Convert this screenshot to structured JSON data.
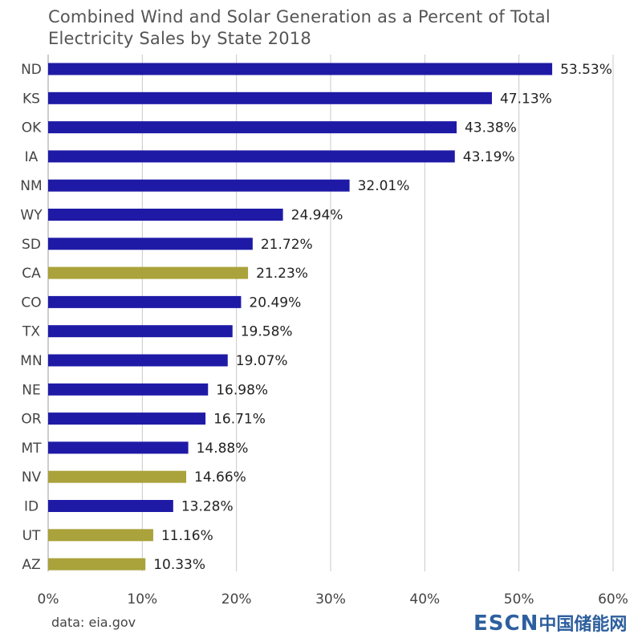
{
  "title_lines": [
    "Combined Wind and Solar Generation as a Percent of Total",
    "Electricity Sales by State 2018"
  ],
  "source": "data: eia.gov",
  "watermark": {
    "latin": "ESCN",
    "cn": "中国储能网"
  },
  "colors": {
    "wind": "#1f1aa6",
    "solar": "#aaa23b",
    "grid": "#c8c8c8",
    "axis": "#999999",
    "text": "#222222"
  },
  "chart_data": {
    "type": "bar",
    "orientation": "horizontal",
    "title": "Combined Wind and Solar Generation as a Percent of Total Electricity Sales by State 2018",
    "xlabel": "",
    "ylabel": "",
    "xlim": [
      0,
      60
    ],
    "xticks": [
      0,
      10,
      20,
      30,
      40,
      50,
      60
    ],
    "xtick_labels": [
      "0%",
      "10%",
      "20%",
      "30%",
      "40%",
      "50%",
      "60%"
    ],
    "grid": true,
    "categories": [
      "ND",
      "KS",
      "OK",
      "IA",
      "NM",
      "WY",
      "SD",
      "CA",
      "CO",
      "TX",
      "MN",
      "NE",
      "OR",
      "MT",
      "NV",
      "ID",
      "UT",
      "AZ"
    ],
    "values": [
      53.53,
      47.13,
      43.38,
      43.19,
      32.01,
      24.94,
      21.72,
      21.23,
      20.49,
      19.58,
      19.07,
      16.98,
      16.71,
      14.88,
      14.66,
      13.28,
      11.16,
      10.33
    ],
    "labels": [
      "53.53%",
      "47.13%",
      "43.38%",
      "43.19%",
      "32.01%",
      "24.94%",
      "21.72%",
      "21.23%",
      "20.49%",
      "19.58%",
      "19.07%",
      "16.98%",
      "16.71%",
      "14.88%",
      "14.66%",
      "13.28%",
      "11.16%",
      "10.33%"
    ],
    "bar_color_keys": [
      "wind",
      "wind",
      "wind",
      "wind",
      "wind",
      "wind",
      "wind",
      "solar",
      "wind",
      "wind",
      "wind",
      "wind",
      "wind",
      "wind",
      "solar",
      "wind",
      "solar",
      "solar"
    ]
  }
}
